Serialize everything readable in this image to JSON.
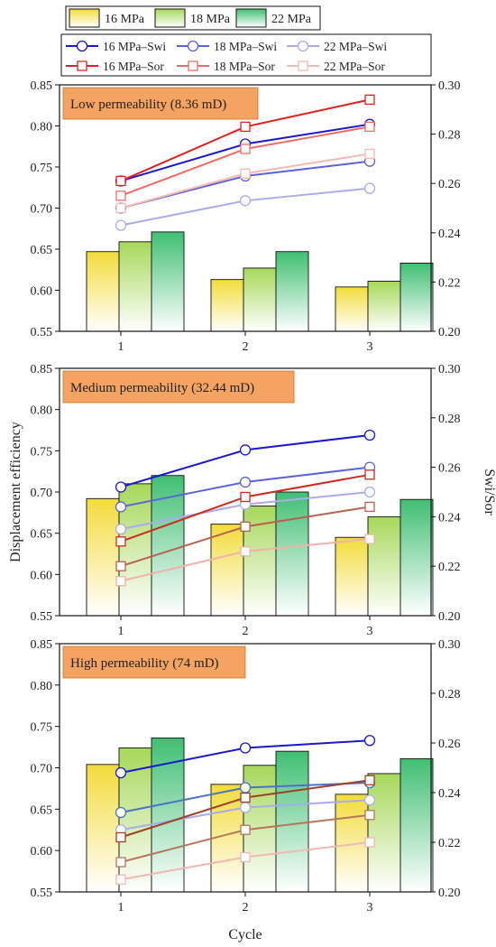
{
  "chart_data": {
    "type": "bar",
    "categories": [
      "1",
      "2",
      "3"
    ],
    "xlabel": "Cycle",
    "ylabel_left": "Displacement efficiency",
    "ylabel_right": "Swi/Sor",
    "ylim_left": [
      0.55,
      0.85
    ],
    "ylim_right": [
      0.2,
      0.3
    ],
    "yticks_left": [
      "0.55",
      "0.60",
      "0.65",
      "0.70",
      "0.75",
      "0.80",
      "0.85"
    ],
    "yticks_right": [
      "0.20",
      "0.22",
      "0.24",
      "0.26",
      "0.28",
      "0.30"
    ],
    "legend_bars": [
      {
        "name": "16 MPa",
        "color": "#f2dc3a"
      },
      {
        "name": "18 MPa",
        "color": "#a6d85a"
      },
      {
        "name": "22 MPa",
        "color": "#3fbf72"
      }
    ],
    "legend_lines": [
      {
        "name": "16 MPa–Swi",
        "color": "#1a1acc",
        "marker": "circle"
      },
      {
        "name": "18 MPa–Swi",
        "color": "#5a63dd",
        "marker": "circle"
      },
      {
        "name": "22 MPa–Swi",
        "color": "#a9adec",
        "marker": "circle"
      },
      {
        "name": "16 MPa–Sor",
        "color": "#e0201e",
        "marker": "square"
      },
      {
        "name": "18 MPa–Sor",
        "color": "#ee6e66",
        "marker": "square"
      },
      {
        "name": "22 MPa–Sor",
        "color": "#f6b8b2",
        "marker": "square"
      }
    ],
    "panels": [
      {
        "title": "Low permeability (8.36 mD)",
        "bars": [
          [
            0.647,
            0.613,
            0.604
          ],
          [
            0.659,
            0.627,
            0.611
          ],
          [
            0.671,
            0.647,
            0.633
          ]
        ],
        "lines": [
          {
            "color": "#1a1acc",
            "marker": "circle",
            "values": [
              0.261,
              0.276,
              0.284
            ]
          },
          {
            "color": "#5a63dd",
            "marker": "circle",
            "values": [
              0.25,
              0.263,
              0.269
            ]
          },
          {
            "color": "#a9adec",
            "marker": "circle",
            "values": [
              0.243,
              0.253,
              0.258
            ]
          },
          {
            "color": "#e0201e",
            "marker": "square",
            "values": [
              0.261,
              0.283,
              0.294
            ]
          },
          {
            "color": "#ee6e66",
            "marker": "square",
            "values": [
              0.255,
              0.274,
              0.283
            ]
          },
          {
            "color": "#f6b8b2",
            "marker": "square",
            "values": [
              0.25,
              0.264,
              0.272
            ]
          }
        ]
      },
      {
        "title": "Medium permeability (32.44 mD)",
        "bars": [
          [
            0.692,
            0.661,
            0.645
          ],
          [
            0.71,
            0.683,
            0.67
          ],
          [
            0.72,
            0.7,
            0.691
          ]
        ],
        "lines": [
          {
            "color": "#1a1acc",
            "marker": "circle",
            "values": [
              0.252,
              0.267,
              0.273
            ]
          },
          {
            "color": "#5a63dd",
            "marker": "circle",
            "values": [
              0.244,
              0.254,
              0.26
            ]
          },
          {
            "color": "#a9adec",
            "marker": "circle",
            "values": [
              0.235,
              0.245,
              0.25
            ]
          },
          {
            "color": "#d02a1e",
            "marker": "square",
            "values": [
              0.23,
              0.248,
              0.257
            ]
          },
          {
            "color": "#b86050",
            "marker": "square",
            "values": [
              0.22,
              0.236,
              0.244
            ]
          },
          {
            "color": "#f2b2aa",
            "marker": "square",
            "values": [
              0.214,
              0.226,
              0.231
            ]
          }
        ]
      },
      {
        "title": "High permeability (74 mD)",
        "bars": [
          [
            0.704,
            0.68,
            0.668
          ],
          [
            0.724,
            0.703,
            0.693
          ],
          [
            0.736,
            0.72,
            0.711
          ]
        ],
        "lines": [
          {
            "color": "#1a1acc",
            "marker": "circle",
            "values": [
              0.248,
              0.258,
              0.261
            ]
          },
          {
            "color": "#4a73c8",
            "marker": "circle",
            "values": [
              0.232,
              0.242,
              0.244
            ]
          },
          {
            "color": "#a9adec",
            "marker": "circle",
            "values": [
              0.225,
              0.234,
              0.237
            ]
          },
          {
            "color": "#a0402a",
            "marker": "square",
            "values": [
              0.222,
              0.238,
              0.245
            ]
          },
          {
            "color": "#b8775a",
            "marker": "square",
            "values": [
              0.212,
              0.225,
              0.231
            ]
          },
          {
            "color": "#f2b8b2",
            "marker": "square",
            "values": [
              0.205,
              0.214,
              0.22
            ]
          }
        ]
      }
    ]
  }
}
